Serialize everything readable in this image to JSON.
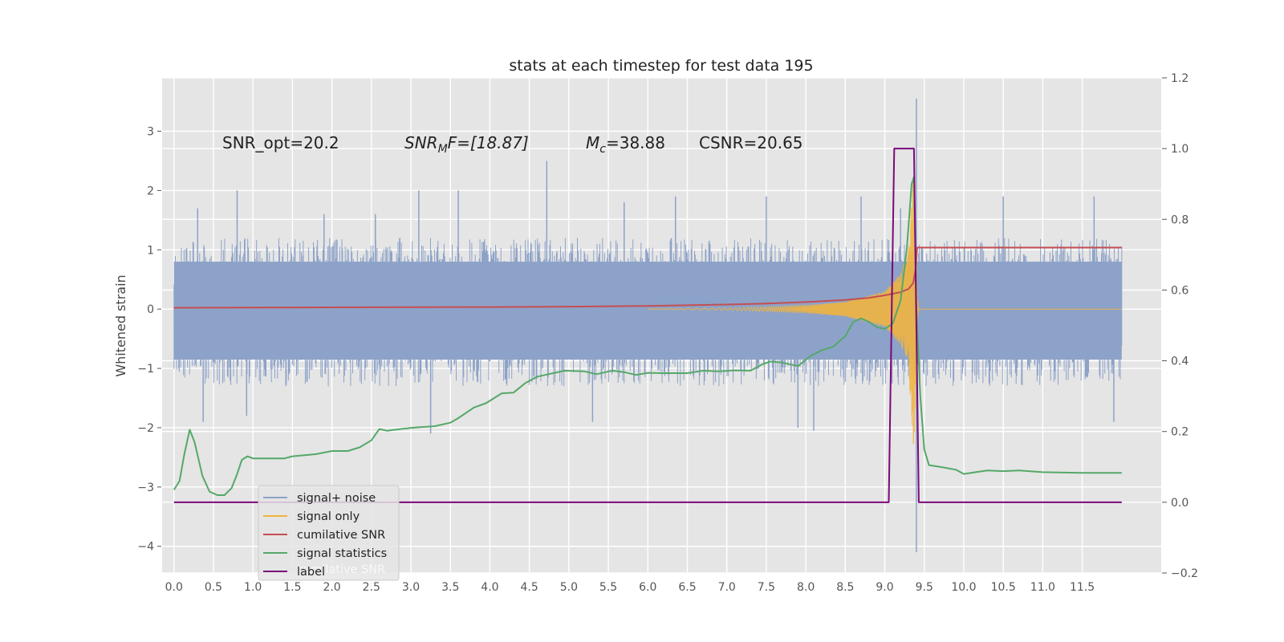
{
  "chart_data": {
    "type": "line",
    "title": "stats at each timestep for test data 195",
    "ylabel": "Whitened strain",
    "y2label": "",
    "xlim": [
      -0.15,
      12.5
    ],
    "ylim": [
      -4.45,
      3.9
    ],
    "y2lim": [
      -0.2,
      1.2
    ],
    "x_ticks": [
      "0.0",
      "0.5",
      "1.0",
      "1.5",
      "2.0",
      "2.5",
      "3.0",
      "3.5",
      "4.0",
      "4.5",
      "5.0",
      "5.5",
      "6.0",
      "6.5",
      "7.0",
      "7.5",
      "8.0",
      "8.5",
      "9.0",
      "9.5",
      "10.0",
      "10.5",
      "11.0",
      "11.5"
    ],
    "y_ticks": [
      "3",
      "2",
      "1",
      "0",
      "−1",
      "−2",
      "−3",
      "−4"
    ],
    "y2_ticks": [
      "1.2",
      "1.0",
      "0.8",
      "0.6",
      "0.4",
      "0.2",
      "0.0",
      "−0.2"
    ],
    "grid": true,
    "legend_position": "lower-left",
    "annotations": {
      "snr_opt": "SNR_opt=20.2",
      "snr_mf_main": "SNR",
      "snr_mf_sub": "M",
      "snr_mf_rest": "F=[18.87]",
      "mc_main": "M",
      "mc_sub": "c",
      "mc_rest": "=38.88",
      "csnr": "CSNR=20.65"
    },
    "colors": {
      "plot_bg": "#e5e5e5",
      "grid": "#ffffff",
      "noise": "#8da2c8",
      "signal": "#f0b440",
      "csnr": "#c44e52",
      "stats": "#55a868",
      "label": "#7b0a7b"
    },
    "series": [
      {
        "name": "signal+ noise",
        "axis": "left",
        "color": "#8da2c8",
        "x_range": [
          0.0,
          12.0
        ],
        "envelope_pos": [
          [
            0.0,
            1.1
          ],
          [
            0.5,
            1.2
          ],
          [
            1.0,
            1.2
          ],
          [
            2.0,
            1.2
          ],
          [
            3.0,
            1.2
          ],
          [
            4.0,
            1.2
          ],
          [
            5.0,
            1.2
          ],
          [
            6.0,
            1.2
          ],
          [
            7.0,
            1.2
          ],
          [
            8.0,
            1.2
          ],
          [
            9.0,
            1.2
          ],
          [
            9.5,
            1.2
          ],
          [
            10.0,
            1.2
          ],
          [
            11.0,
            1.2
          ],
          [
            12.0,
            1.2
          ]
        ],
        "envelope_neg": [
          [
            0.0,
            -1.2
          ],
          [
            0.5,
            -1.3
          ],
          [
            1.0,
            -1.3
          ],
          [
            2.0,
            -1.3
          ],
          [
            3.0,
            -1.3
          ],
          [
            4.0,
            -1.3
          ],
          [
            5.0,
            -1.3
          ],
          [
            6.0,
            -1.3
          ],
          [
            7.0,
            -1.3
          ],
          [
            8.0,
            -1.3
          ],
          [
            9.0,
            -1.3
          ],
          [
            9.5,
            -1.3
          ],
          [
            10.0,
            -1.3
          ],
          [
            11.0,
            -1.3
          ],
          [
            12.0,
            -1.2
          ]
        ],
        "peaks": [
          [
            0.3,
            1.7
          ],
          [
            0.8,
            2.0
          ],
          [
            1.9,
            1.6
          ],
          [
            2.55,
            1.6
          ],
          [
            3.1,
            2.0
          ],
          [
            3.6,
            2.0
          ],
          [
            4.72,
            2.5
          ],
          [
            5.7,
            1.8
          ],
          [
            6.35,
            1.9
          ],
          [
            7.5,
            1.9
          ],
          [
            8.7,
            1.9
          ],
          [
            9.2,
            1.7
          ],
          [
            9.4,
            3.55
          ],
          [
            10.5,
            1.9
          ],
          [
            11.65,
            1.9
          ],
          [
            0.37,
            -1.9
          ],
          [
            0.92,
            -1.8
          ],
          [
            3.25,
            -2.1
          ],
          [
            5.3,
            -1.9
          ],
          [
            7.9,
            -2.0
          ],
          [
            8.1,
            -2.05
          ],
          [
            9.4,
            -4.1
          ],
          [
            11.9,
            -1.9
          ]
        ]
      },
      {
        "name": "signal only",
        "axis": "left",
        "color": "#f0b440",
        "envelope": [
          [
            6.0,
            0.0
          ],
          [
            7.0,
            0.02
          ],
          [
            8.0,
            0.06
          ],
          [
            8.5,
            0.12
          ],
          [
            9.0,
            0.3
          ],
          [
            9.2,
            0.6
          ],
          [
            9.3,
            1.0
          ],
          [
            9.37,
            2.5
          ],
          [
            9.41,
            0.3
          ],
          [
            9.43,
            0.0
          ],
          [
            12.0,
            0.0
          ]
        ]
      },
      {
        "name": "cumilative SNR",
        "axis": "right",
        "color": "#c44e52",
        "points": [
          [
            0.0,
            0.55
          ],
          [
            1.0,
            0.5505
          ],
          [
            2.0,
            0.551
          ],
          [
            3.0,
            0.5515
          ],
          [
            4.0,
            0.552
          ],
          [
            5.0,
            0.553
          ],
          [
            6.0,
            0.555
          ],
          [
            7.0,
            0.559
          ],
          [
            7.5,
            0.562
          ],
          [
            8.0,
            0.566
          ],
          [
            8.5,
            0.572
          ],
          [
            8.8,
            0.578
          ],
          [
            9.0,
            0.585
          ],
          [
            9.2,
            0.594
          ],
          [
            9.3,
            0.603
          ],
          [
            9.36,
            0.62
          ],
          [
            9.39,
            0.66
          ],
          [
            9.41,
            0.72
          ],
          [
            12.0,
            0.72
          ]
        ]
      },
      {
        "name": "signal statistics",
        "axis": "right",
        "color": "#55a868",
        "points": [
          [
            0.0,
            0.035
          ],
          [
            0.07,
            0.06
          ],
          [
            0.13,
            0.135
          ],
          [
            0.2,
            0.205
          ],
          [
            0.26,
            0.17
          ],
          [
            0.36,
            0.075
          ],
          [
            0.45,
            0.03
          ],
          [
            0.55,
            0.02
          ],
          [
            0.64,
            0.02
          ],
          [
            0.73,
            0.04
          ],
          [
            0.8,
            0.08
          ],
          [
            0.86,
            0.12
          ],
          [
            0.93,
            0.13
          ],
          [
            1.0,
            0.124
          ],
          [
            1.4,
            0.124
          ],
          [
            1.5,
            0.13
          ],
          [
            1.8,
            0.136
          ],
          [
            2.0,
            0.145
          ],
          [
            2.2,
            0.145
          ],
          [
            2.35,
            0.155
          ],
          [
            2.5,
            0.175
          ],
          [
            2.6,
            0.207
          ],
          [
            2.7,
            0.202
          ],
          [
            2.9,
            0.208
          ],
          [
            3.1,
            0.212
          ],
          [
            3.3,
            0.215
          ],
          [
            3.5,
            0.225
          ],
          [
            3.6,
            0.238
          ],
          [
            3.8,
            0.268
          ],
          [
            3.95,
            0.28
          ],
          [
            4.15,
            0.308
          ],
          [
            4.3,
            0.31
          ],
          [
            4.45,
            0.337
          ],
          [
            4.6,
            0.355
          ],
          [
            4.7,
            0.36
          ],
          [
            4.95,
            0.372
          ],
          [
            5.2,
            0.37
          ],
          [
            5.35,
            0.362
          ],
          [
            5.55,
            0.372
          ],
          [
            5.7,
            0.368
          ],
          [
            5.85,
            0.36
          ],
          [
            6.0,
            0.366
          ],
          [
            6.2,
            0.365
          ],
          [
            6.5,
            0.365
          ],
          [
            6.7,
            0.372
          ],
          [
            6.9,
            0.37
          ],
          [
            7.1,
            0.373
          ],
          [
            7.3,
            0.372
          ],
          [
            7.45,
            0.39
          ],
          [
            7.55,
            0.398
          ],
          [
            7.7,
            0.395
          ],
          [
            7.9,
            0.385
          ],
          [
            8.05,
            0.412
          ],
          [
            8.2,
            0.43
          ],
          [
            8.35,
            0.44
          ],
          [
            8.5,
            0.47
          ],
          [
            8.6,
            0.51
          ],
          [
            8.7,
            0.52
          ],
          [
            8.8,
            0.51
          ],
          [
            8.9,
            0.495
          ],
          [
            9.0,
            0.49
          ],
          [
            9.1,
            0.505
          ],
          [
            9.2,
            0.57
          ],
          [
            9.28,
            0.72
          ],
          [
            9.34,
            0.9
          ],
          [
            9.37,
            0.92
          ],
          [
            9.4,
            0.55
          ],
          [
            9.45,
            0.3
          ],
          [
            9.5,
            0.15
          ],
          [
            9.56,
            0.105
          ],
          [
            9.7,
            0.1
          ],
          [
            9.9,
            0.092
          ],
          [
            10.0,
            0.08
          ],
          [
            10.15,
            0.085
          ],
          [
            10.3,
            0.09
          ],
          [
            10.5,
            0.088
          ],
          [
            10.7,
            0.09
          ],
          [
            11.0,
            0.085
          ],
          [
            11.5,
            0.083
          ],
          [
            12.0,
            0.083
          ]
        ]
      },
      {
        "name": "label",
        "axis": "right",
        "color": "#7b0a7b",
        "points": [
          [
            0.0,
            0.0
          ],
          [
            9.05,
            0.0
          ],
          [
            9.12,
            1.0
          ],
          [
            9.37,
            1.0
          ],
          [
            9.43,
            0.0
          ],
          [
            12.0,
            0.0
          ]
        ]
      }
    ],
    "legend_ghost_text": "cumilative SNR"
  }
}
